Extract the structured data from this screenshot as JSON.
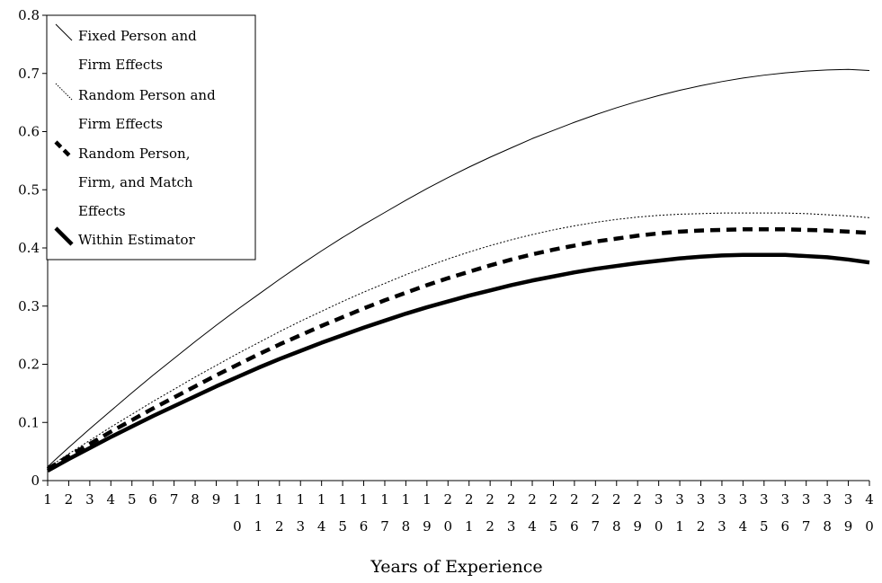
{
  "chart_data": {
    "type": "line",
    "title": "",
    "xlabel": "Years of Experience",
    "ylabel": "",
    "x": [
      1,
      2,
      3,
      4,
      5,
      6,
      7,
      8,
      9,
      10,
      11,
      12,
      13,
      14,
      15,
      16,
      17,
      18,
      19,
      20,
      21,
      22,
      23,
      24,
      25,
      26,
      27,
      28,
      29,
      30,
      31,
      32,
      33,
      34,
      35,
      36,
      37,
      38,
      39,
      40
    ],
    "x_tick_labels": [
      [
        "1",
        ""
      ],
      [
        "2",
        ""
      ],
      [
        "3",
        ""
      ],
      [
        "4",
        ""
      ],
      [
        "5",
        ""
      ],
      [
        "6",
        ""
      ],
      [
        "7",
        ""
      ],
      [
        "8",
        ""
      ],
      [
        "9",
        ""
      ],
      [
        "1",
        "0"
      ],
      [
        "1",
        "1"
      ],
      [
        "1",
        "2"
      ],
      [
        "1",
        "3"
      ],
      [
        "1",
        "4"
      ],
      [
        "1",
        "5"
      ],
      [
        "1",
        "6"
      ],
      [
        "1",
        "7"
      ],
      [
        "1",
        "8"
      ],
      [
        "1",
        "9"
      ],
      [
        "2",
        "0"
      ],
      [
        "2",
        "1"
      ],
      [
        "2",
        "2"
      ],
      [
        "2",
        "3"
      ],
      [
        "2",
        "4"
      ],
      [
        "2",
        "5"
      ],
      [
        "2",
        "6"
      ],
      [
        "2",
        "7"
      ],
      [
        "2",
        "8"
      ],
      [
        "2",
        "9"
      ],
      [
        "3",
        "0"
      ],
      [
        "3",
        "1"
      ],
      [
        "3",
        "2"
      ],
      [
        "3",
        "3"
      ],
      [
        "3",
        "4"
      ],
      [
        "3",
        "5"
      ],
      [
        "3",
        "6"
      ],
      [
        "3",
        "7"
      ],
      [
        "3",
        "8"
      ],
      [
        "3",
        "9"
      ],
      [
        "4",
        "0"
      ]
    ],
    "ylim": [
      0,
      0.8
    ],
    "y_ticks": [
      "0",
      "0.1",
      "0.2",
      "0.3",
      "0.4",
      "0.5",
      "0.6",
      "0.7",
      "0.8"
    ],
    "legend_position": "top-left",
    "series": [
      {
        "name": "Fixed Person and Firm Effects",
        "legend_lines": [
          "Fixed Person and",
          "Firm Effects"
        ],
        "style": "thin-solid",
        "values": [
          0.024,
          0.057,
          0.089,
          0.12,
          0.151,
          0.181,
          0.21,
          0.239,
          0.267,
          0.294,
          0.32,
          0.346,
          0.371,
          0.395,
          0.418,
          0.44,
          0.461,
          0.482,
          0.502,
          0.521,
          0.539,
          0.556,
          0.572,
          0.588,
          0.602,
          0.616,
          0.629,
          0.641,
          0.652,
          0.662,
          0.671,
          0.679,
          0.686,
          0.692,
          0.697,
          0.701,
          0.704,
          0.706,
          0.707,
          0.705
        ]
      },
      {
        "name": "Random Person and Firm Effects",
        "legend_lines": [
          "Random Person and",
          "Firm Effects"
        ],
        "style": "thin-dotted",
        "values": [
          0.022,
          0.046,
          0.069,
          0.092,
          0.114,
          0.136,
          0.157,
          0.178,
          0.198,
          0.218,
          0.237,
          0.256,
          0.274,
          0.291,
          0.308,
          0.324,
          0.339,
          0.354,
          0.368,
          0.381,
          0.393,
          0.404,
          0.414,
          0.423,
          0.431,
          0.438,
          0.444,
          0.449,
          0.453,
          0.456,
          0.458,
          0.459,
          0.46,
          0.46,
          0.46,
          0.46,
          0.459,
          0.457,
          0.455,
          0.452
        ]
      },
      {
        "name": "Random Person, Firm, and Match Effects",
        "legend_lines": [
          "Random Person,",
          "Firm, and Match",
          "Effects"
        ],
        "style": "thick-dashed",
        "values": [
          0.02,
          0.042,
          0.063,
          0.084,
          0.104,
          0.124,
          0.143,
          0.162,
          0.181,
          0.199,
          0.217,
          0.234,
          0.25,
          0.266,
          0.281,
          0.296,
          0.31,
          0.323,
          0.336,
          0.348,
          0.359,
          0.37,
          0.38,
          0.389,
          0.397,
          0.404,
          0.411,
          0.416,
          0.421,
          0.425,
          0.428,
          0.43,
          0.431,
          0.432,
          0.432,
          0.432,
          0.431,
          0.43,
          0.428,
          0.426
        ]
      },
      {
        "name": "Within Estimator",
        "legend_lines": [
          "Within Estimator"
        ],
        "style": "thick-solid",
        "values": [
          0.017,
          0.037,
          0.056,
          0.075,
          0.093,
          0.111,
          0.128,
          0.145,
          0.162,
          0.178,
          0.194,
          0.209,
          0.223,
          0.237,
          0.25,
          0.263,
          0.275,
          0.287,
          0.298,
          0.308,
          0.318,
          0.327,
          0.336,
          0.344,
          0.351,
          0.358,
          0.364,
          0.369,
          0.374,
          0.378,
          0.382,
          0.385,
          0.387,
          0.388,
          0.388,
          0.388,
          0.386,
          0.384,
          0.38,
          0.375
        ]
      }
    ]
  }
}
